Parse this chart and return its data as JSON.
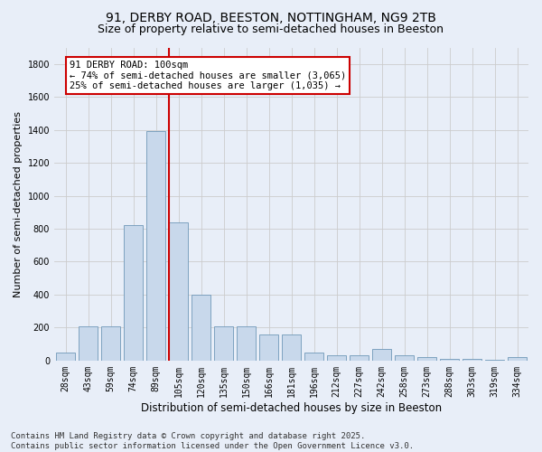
{
  "title_line1": "91, DERBY ROAD, BEESTON, NOTTINGHAM, NG9 2TB",
  "title_line2": "Size of property relative to semi-detached houses in Beeston",
  "xlabel": "Distribution of semi-detached houses by size in Beeston",
  "ylabel": "Number of semi-detached properties",
  "categories": [
    "28sqm",
    "43sqm",
    "59sqm",
    "74sqm",
    "89sqm",
    "105sqm",
    "120sqm",
    "135sqm",
    "150sqm",
    "166sqm",
    "181sqm",
    "196sqm",
    "212sqm",
    "227sqm",
    "242sqm",
    "258sqm",
    "273sqm",
    "288sqm",
    "303sqm",
    "319sqm",
    "334sqm"
  ],
  "values": [
    50,
    210,
    210,
    820,
    1390,
    840,
    400,
    210,
    210,
    160,
    160,
    50,
    30,
    30,
    70,
    30,
    20,
    10,
    10,
    5,
    20
  ],
  "bar_color": "#c8d8eb",
  "bar_edge_color": "#7098b8",
  "vline_x_index": 5,
  "vline_color": "#cc0000",
  "annotation_text": "91 DERBY ROAD: 100sqm\n← 74% of semi-detached houses are smaller (3,065)\n25% of semi-detached houses are larger (1,035) →",
  "annotation_box_facecolor": "#ffffff",
  "annotation_box_edgecolor": "#cc0000",
  "ylim": [
    0,
    1900
  ],
  "yticks": [
    0,
    200,
    400,
    600,
    800,
    1000,
    1200,
    1400,
    1600,
    1800
  ],
  "grid_color": "#cccccc",
  "background_color": "#e8eef8",
  "footer_text": "Contains HM Land Registry data © Crown copyright and database right 2025.\nContains public sector information licensed under the Open Government Licence v3.0.",
  "title_fontsize": 10,
  "subtitle_fontsize": 9,
  "axis_label_fontsize": 8.5,
  "tick_fontsize": 7,
  "annotation_fontsize": 7.5,
  "footer_fontsize": 6.5,
  "ylabel_fontsize": 8
}
